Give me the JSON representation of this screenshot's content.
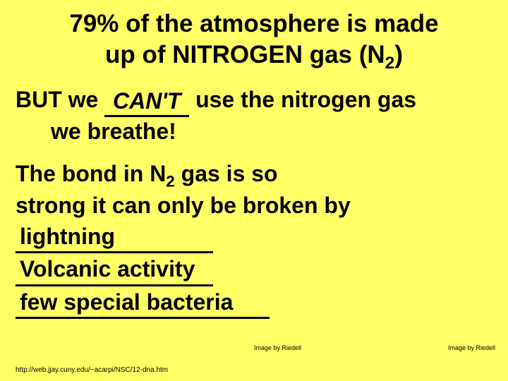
{
  "background_color": "#ffff66",
  "text_color": "#000000",
  "font_family": "Comic Sans MS",
  "title_fontsize": 35,
  "body_fontsize": 32,
  "attrib_fontsize": 9,
  "url_fontsize": 10,
  "title": {
    "line1": "79% of the atmosphere is made",
    "line2_a": "up of NITROGEN gas (N",
    "line2_sub": "2",
    "line2_b": ")"
  },
  "para1": {
    "pre": "BUT we ",
    "fill": "CAN'T",
    "post": " use the nitrogen gas",
    "line2": "we breathe!"
  },
  "para2": {
    "line1_a": "The bond in N",
    "line1_sub": "2",
    "line1_b": " gas is so",
    "line2": "strong it can only be broken by"
  },
  "answers": [
    "lightning",
    "Volcanic activity",
    "few special bacteria"
  ],
  "attribution": "Image by Riedell",
  "source_url": "http://web.jjay.cuny.edu/~acarpi/NSC/12-dna.htm"
}
